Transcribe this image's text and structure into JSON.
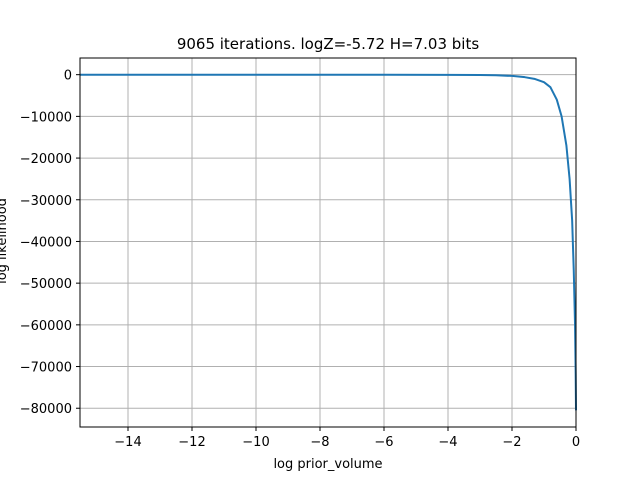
{
  "chart_data": {
    "type": "line",
    "title": "9065 iterations. logZ=-5.72 H=7.03 bits",
    "xlabel": "log prior_volume",
    "ylabel": "log likelihood",
    "xlim": [
      -15.5,
      0
    ],
    "ylim": [
      -84500,
      4000
    ],
    "grid": true,
    "x_ticks": [
      -14,
      -12,
      -10,
      -8,
      -6,
      -4,
      -2,
      0
    ],
    "x_tick_labels": [
      "−14",
      "−12",
      "−10",
      "−8",
      "−6",
      "−4",
      "−2",
      "0"
    ],
    "y_ticks": [
      0,
      -10000,
      -20000,
      -30000,
      -40000,
      -50000,
      -60000,
      -70000,
      -80000
    ],
    "y_tick_labels": [
      "0",
      "−10000",
      "−20000",
      "−30000",
      "−40000",
      "−50000",
      "−60000",
      "−70000",
      "−80000"
    ],
    "series": [
      {
        "color": "#1f77b4",
        "x": [
          -15.5,
          -14,
          -12,
          -10,
          -8,
          -6,
          -4,
          -3,
          -2.5,
          -2,
          -1.6,
          -1.3,
          -1.0,
          -0.8,
          -0.6,
          -0.45,
          -0.3,
          -0.2,
          -0.12,
          -0.07,
          -0.03,
          -0.01,
          0
        ],
        "y": [
          -5,
          -6,
          -8,
          -10,
          -15,
          -20,
          -40,
          -80,
          -150,
          -300,
          -600,
          -1000,
          -1800,
          -3000,
          -6000,
          -10000,
          -17000,
          -25000,
          -35000,
          -47000,
          -60000,
          -72000,
          -80500
        ]
      }
    ]
  }
}
